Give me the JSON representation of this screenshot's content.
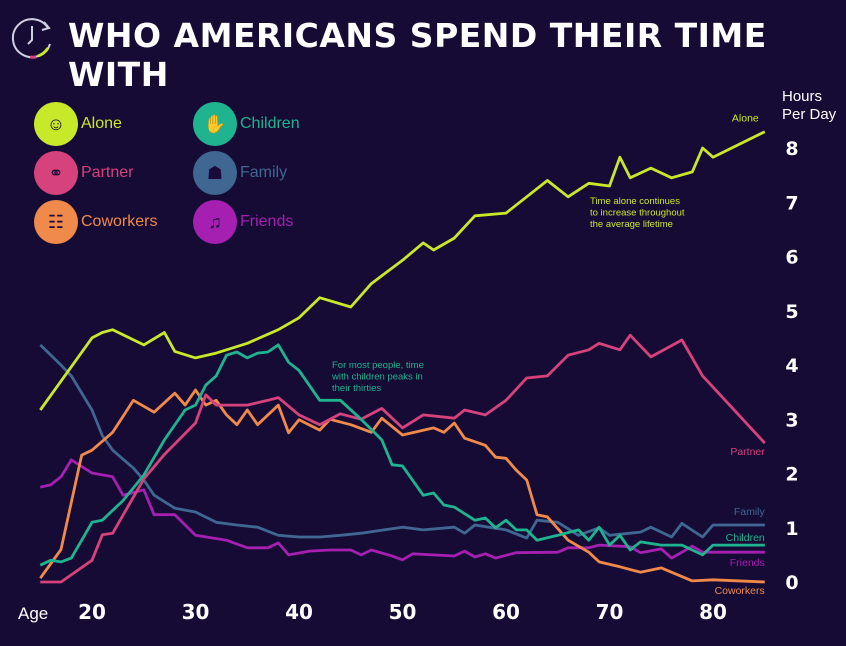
{
  "title": "WHO AMERICANS SPEND THEIR TIME WITH",
  "logo_icon": "clock-refresh-icon",
  "chart_data": {
    "type": "line",
    "title": "WHO AMERICANS SPEND THEIR TIME WITH",
    "xlabel": "Age",
    "ylabel": "Hours Per Day",
    "ylabel_lines": [
      "Hours",
      "Per Day"
    ],
    "xlim": [
      15,
      85
    ],
    "ylim": [
      0,
      8.5
    ],
    "xticks": [
      20,
      30,
      40,
      50,
      60,
      70,
      80
    ],
    "yticks": [
      0,
      1,
      2,
      3,
      4,
      5,
      6,
      7,
      8
    ],
    "grid": false,
    "legend_placement": "top-left",
    "background": "#160b35",
    "series": [
      {
        "name": "Alone",
        "color": "#c8e82a",
        "icon": "person-alone-icon",
        "points": [
          [
            15,
            3.17
          ],
          [
            20,
            4.5
          ],
          [
            21,
            4.6
          ],
          [
            22,
            4.65
          ],
          [
            25,
            4.37
          ],
          [
            27,
            4.6
          ],
          [
            28,
            4.25
          ],
          [
            30,
            4.13
          ],
          [
            32,
            4.22
          ],
          [
            35,
            4.4
          ],
          [
            38,
            4.65
          ],
          [
            40,
            4.87
          ],
          [
            42,
            5.24
          ],
          [
            45,
            5.07
          ],
          [
            47,
            5.5
          ],
          [
            50,
            5.93
          ],
          [
            52,
            6.25
          ],
          [
            53,
            6.12
          ],
          [
            55,
            6.34
          ],
          [
            57,
            6.75
          ],
          [
            60,
            6.8
          ],
          [
            62,
            7.1
          ],
          [
            64,
            7.4
          ],
          [
            66,
            7.1
          ],
          [
            68,
            7.35
          ],
          [
            70,
            7.3
          ],
          [
            71,
            7.83
          ],
          [
            72,
            7.45
          ],
          [
            74,
            7.63
          ],
          [
            76,
            7.45
          ],
          [
            78,
            7.56
          ],
          [
            79,
            8.0
          ],
          [
            80,
            7.83
          ],
          [
            85,
            8.3
          ]
        ]
      },
      {
        "name": "Partner",
        "color": "#d6427c",
        "icon": "couple-icon",
        "points": [
          [
            15,
            0
          ],
          [
            17,
            0
          ],
          [
            20,
            0.4
          ],
          [
            21,
            0.87
          ],
          [
            22,
            0.9
          ],
          [
            25,
            1.9
          ],
          [
            27,
            2.35
          ],
          [
            30,
            2.93
          ],
          [
            31,
            3.45
          ],
          [
            32,
            3.26
          ],
          [
            35,
            3.26
          ],
          [
            37,
            3.35
          ],
          [
            38,
            3.4
          ],
          [
            40,
            3.08
          ],
          [
            42,
            2.9
          ],
          [
            44,
            3.1
          ],
          [
            46,
            3.0
          ],
          [
            48,
            3.2
          ],
          [
            50,
            2.84
          ],
          [
            52,
            3.08
          ],
          [
            55,
            3.02
          ],
          [
            56,
            3.17
          ],
          [
            58,
            3.08
          ],
          [
            60,
            3.35
          ],
          [
            62,
            3.76
          ],
          [
            64,
            3.8
          ],
          [
            66,
            4.18
          ],
          [
            68,
            4.28
          ],
          [
            69,
            4.4
          ],
          [
            71,
            4.28
          ],
          [
            72,
            4.55
          ],
          [
            74,
            4.15
          ],
          [
            77,
            4.46
          ],
          [
            79,
            3.8
          ],
          [
            85,
            2.56
          ]
        ]
      },
      {
        "name": "Coworkers",
        "color": "#f08a4b",
        "icon": "coworkers-icon",
        "points": [
          [
            15,
            0.07
          ],
          [
            17,
            0.6
          ],
          [
            19,
            2.34
          ],
          [
            20,
            2.43
          ],
          [
            22,
            2.76
          ],
          [
            24,
            3.35
          ],
          [
            26,
            3.13
          ],
          [
            28,
            3.48
          ],
          [
            29,
            3.26
          ],
          [
            30,
            3.54
          ],
          [
            31,
            3.26
          ],
          [
            32,
            3.35
          ],
          [
            33,
            3.08
          ],
          [
            34,
            2.9
          ],
          [
            35,
            3.17
          ],
          [
            36,
            2.9
          ],
          [
            38,
            3.26
          ],
          [
            39,
            2.75
          ],
          [
            40,
            2.99
          ],
          [
            42,
            2.8
          ],
          [
            43,
            3.0
          ],
          [
            45,
            2.9
          ],
          [
            47,
            2.76
          ],
          [
            48,
            3.02
          ],
          [
            50,
            2.71
          ],
          [
            53,
            2.84
          ],
          [
            54,
            2.76
          ],
          [
            55,
            2.93
          ],
          [
            56,
            2.65
          ],
          [
            58,
            2.52
          ],
          [
            59,
            2.3
          ],
          [
            60,
            2.28
          ],
          [
            61,
            2.06
          ],
          [
            62,
            1.88
          ],
          [
            63,
            1.24
          ],
          [
            64,
            1.2
          ],
          [
            66,
            0.77
          ],
          [
            68,
            0.55
          ],
          [
            69,
            0.37
          ],
          [
            71,
            0.28
          ],
          [
            73,
            0.18
          ],
          [
            75,
            0.26
          ],
          [
            78,
            0.02
          ],
          [
            80,
            0.04
          ],
          [
            85,
            0
          ]
        ]
      },
      {
        "name": "Children",
        "color": "#1fb38f",
        "icon": "children-icon",
        "points": [
          [
            15,
            0.31
          ],
          [
            16,
            0.4
          ],
          [
            17,
            0.37
          ],
          [
            18,
            0.44
          ],
          [
            19,
            0.77
          ],
          [
            20,
            1.1
          ],
          [
            21,
            1.14
          ],
          [
            23,
            1.5
          ],
          [
            25,
            1.97
          ],
          [
            27,
            2.62
          ],
          [
            29,
            3.17
          ],
          [
            30,
            3.26
          ],
          [
            31,
            3.63
          ],
          [
            32,
            3.8
          ],
          [
            33,
            4.18
          ],
          [
            34,
            4.24
          ],
          [
            35,
            4.13
          ],
          [
            36,
            4.22
          ],
          [
            37,
            4.24
          ],
          [
            38,
            4.37
          ],
          [
            39,
            4.05
          ],
          [
            40,
            3.9
          ],
          [
            42,
            3.35
          ],
          [
            44,
            3.35
          ],
          [
            46,
            3.0
          ],
          [
            48,
            2.62
          ],
          [
            49,
            2.16
          ],
          [
            50,
            2.14
          ],
          [
            52,
            1.6
          ],
          [
            53,
            1.64
          ],
          [
            54,
            1.42
          ],
          [
            55,
            1.38
          ],
          [
            57,
            1.14
          ],
          [
            58,
            1.18
          ],
          [
            59,
            1.0
          ],
          [
            60,
            1.14
          ],
          [
            61,
            0.96
          ],
          [
            62,
            0.96
          ],
          [
            63,
            0.77
          ],
          [
            65,
            0.86
          ],
          [
            67,
            0.96
          ],
          [
            68,
            0.77
          ],
          [
            69,
            1.01
          ],
          [
            70,
            0.68
          ],
          [
            71,
            0.86
          ],
          [
            72,
            0.59
          ],
          [
            73,
            0.74
          ],
          [
            75,
            0.68
          ],
          [
            77,
            0.68
          ],
          [
            79,
            0.5
          ],
          [
            80,
            0.68
          ],
          [
            85,
            0.68
          ]
        ]
      },
      {
        "name": "Family",
        "color": "#3f6792",
        "icon": "family-table-icon",
        "points": [
          [
            15,
            4.37
          ],
          [
            17,
            4.0
          ],
          [
            18,
            3.8
          ],
          [
            20,
            3.17
          ],
          [
            21,
            2.7
          ],
          [
            22,
            2.43
          ],
          [
            24,
            2.1
          ],
          [
            25,
            1.88
          ],
          [
            26,
            1.6
          ],
          [
            28,
            1.36
          ],
          [
            30,
            1.29
          ],
          [
            32,
            1.1
          ],
          [
            34,
            1.05
          ],
          [
            36,
            1.01
          ],
          [
            38,
            0.86
          ],
          [
            40,
            0.83
          ],
          [
            42,
            0.83
          ],
          [
            44,
            0.86
          ],
          [
            46,
            0.9
          ],
          [
            50,
            1.01
          ],
          [
            52,
            0.96
          ],
          [
            55,
            1.01
          ],
          [
            56,
            0.9
          ],
          [
            57,
            1.05
          ],
          [
            60,
            0.96
          ],
          [
            62,
            0.81
          ],
          [
            63,
            1.14
          ],
          [
            65,
            1.1
          ],
          [
            67,
            0.86
          ],
          [
            69,
            1.0
          ],
          [
            70,
            0.86
          ],
          [
            73,
            0.92
          ],
          [
            74,
            1.01
          ],
          [
            76,
            0.83
          ],
          [
            77,
            1.08
          ],
          [
            79,
            0.83
          ],
          [
            80,
            1.05
          ],
          [
            85,
            1.05
          ]
        ]
      },
      {
        "name": "Friends",
        "color": "#a51fb0",
        "icon": "friends-icon",
        "points": [
          [
            15,
            1.75
          ],
          [
            16,
            1.79
          ],
          [
            17,
            1.94
          ],
          [
            18,
            2.25
          ],
          [
            20,
            2.01
          ],
          [
            22,
            1.94
          ],
          [
            23,
            1.6
          ],
          [
            25,
            1.7
          ],
          [
            26,
            1.24
          ],
          [
            28,
            1.24
          ],
          [
            30,
            0.86
          ],
          [
            33,
            0.77
          ],
          [
            35,
            0.63
          ],
          [
            37,
            0.63
          ],
          [
            38,
            0.72
          ],
          [
            39,
            0.5
          ],
          [
            41,
            0.57
          ],
          [
            43,
            0.59
          ],
          [
            45,
            0.59
          ],
          [
            46,
            0.5
          ],
          [
            47,
            0.59
          ],
          [
            49,
            0.48
          ],
          [
            50,
            0.41
          ],
          [
            51,
            0.52
          ],
          [
            55,
            0.48
          ],
          [
            56,
            0.57
          ],
          [
            57,
            0.46
          ],
          [
            58,
            0.52
          ],
          [
            59,
            0.44
          ],
          [
            61,
            0.54
          ],
          [
            65,
            0.55
          ],
          [
            66,
            0.63
          ],
          [
            68,
            0.63
          ],
          [
            69,
            0.68
          ],
          [
            72,
            0.65
          ],
          [
            73,
            0.54
          ],
          [
            75,
            0.61
          ],
          [
            76,
            0.44
          ],
          [
            78,
            0.66
          ],
          [
            79,
            0.55
          ],
          [
            85,
            0.55
          ]
        ]
      }
    ],
    "annotations": [
      {
        "series": "Alone",
        "lines": [
          "Time alone continues",
          "to increase throughout",
          "the average lifetime"
        ]
      },
      {
        "series": "Children",
        "lines": [
          "For most people, time",
          "with children peaks in",
          "their thirties"
        ]
      }
    ]
  }
}
